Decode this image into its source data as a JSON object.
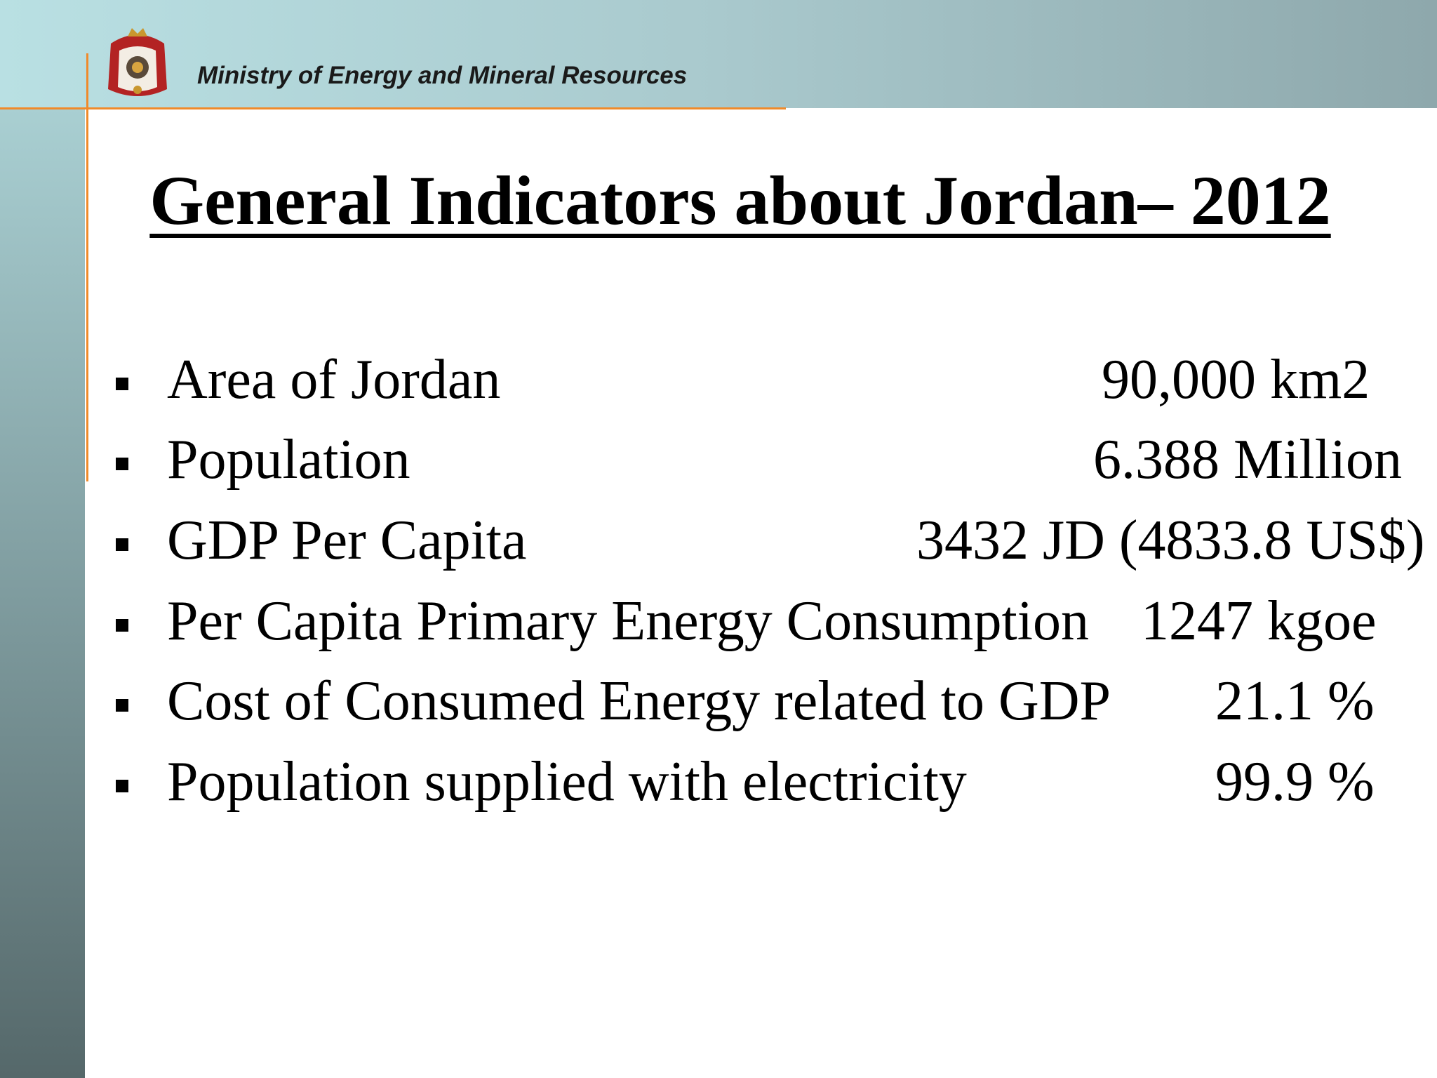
{
  "header": {
    "title": "Ministry of Energy and Mineral Resources"
  },
  "slide": {
    "title": "General Indicators about Jordan– 2012",
    "items": [
      {
        "label": "Area of Jordan",
        "value": "90,000 km2"
      },
      {
        "label": "Population",
        "value": "6.388 Million"
      },
      {
        "label": "GDP Per Capita",
        "value": "3432 JD (4833.8 US$)"
      },
      {
        "label": "Per Capita Primary Energy Consumption",
        "value": "1247 kgoe"
      },
      {
        "label": "Cost of Consumed Energy related to GDP",
        "value": "21.1 %"
      },
      {
        "label": "Population supplied with electricity",
        "value": "99.9 %"
      }
    ]
  }
}
